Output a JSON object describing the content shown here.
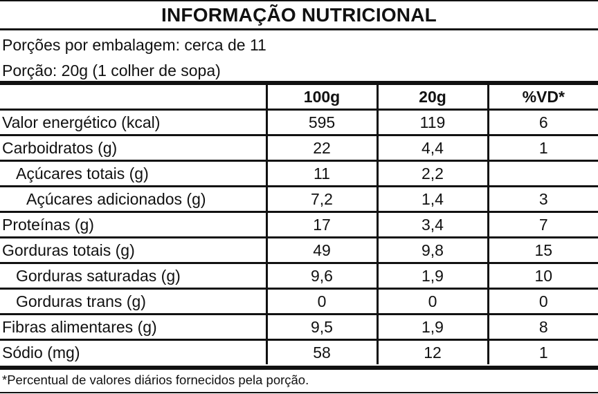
{
  "label": {
    "title": "INFORMAÇÃO NUTRICIONAL",
    "servings_per_package": "Porções por embalagem: cerca de 11",
    "serving_size": "Porção: 20g (1 colher de sopa)",
    "columns": [
      "",
      "100g",
      "20g",
      "%VD*"
    ],
    "rows": [
      {
        "name": "Valor energético (kcal)",
        "indent": 0,
        "per100g": "595",
        "per_portion": "119",
        "vd": "6"
      },
      {
        "name": "Carboidratos (g)",
        "indent": 0,
        "per100g": "22",
        "per_portion": "4,4",
        "vd": "1"
      },
      {
        "name": "Açúcares totais (g)",
        "indent": 1,
        "per100g": "11",
        "per_portion": "2,2",
        "vd": ""
      },
      {
        "name": "Açúcares adicionados (g)",
        "indent": 2,
        "per100g": "7,2",
        "per_portion": "1,4",
        "vd": "3"
      },
      {
        "name": "Proteínas (g)",
        "indent": 0,
        "per100g": "17",
        "per_portion": "3,4",
        "vd": "7"
      },
      {
        "name": "Gorduras totais (g)",
        "indent": 0,
        "per100g": "49",
        "per_portion": "9,8",
        "vd": "15"
      },
      {
        "name": "Gorduras saturadas (g)",
        "indent": 1,
        "per100g": "9,6",
        "per_portion": "1,9",
        "vd": "10"
      },
      {
        "name": "Gorduras trans (g)",
        "indent": 1,
        "per100g": "0",
        "per_portion": "0",
        "vd": "0"
      },
      {
        "name": "Fibras alimentares (g)",
        "indent": 0,
        "per100g": "9,5",
        "per_portion": "1,9",
        "vd": "8"
      },
      {
        "name": "Sódio (mg)",
        "indent": 0,
        "per100g": "58",
        "per_portion": "12",
        "vd": "1"
      }
    ],
    "footnote": "*Percentual de valores diários fornecidos pela porção."
  }
}
